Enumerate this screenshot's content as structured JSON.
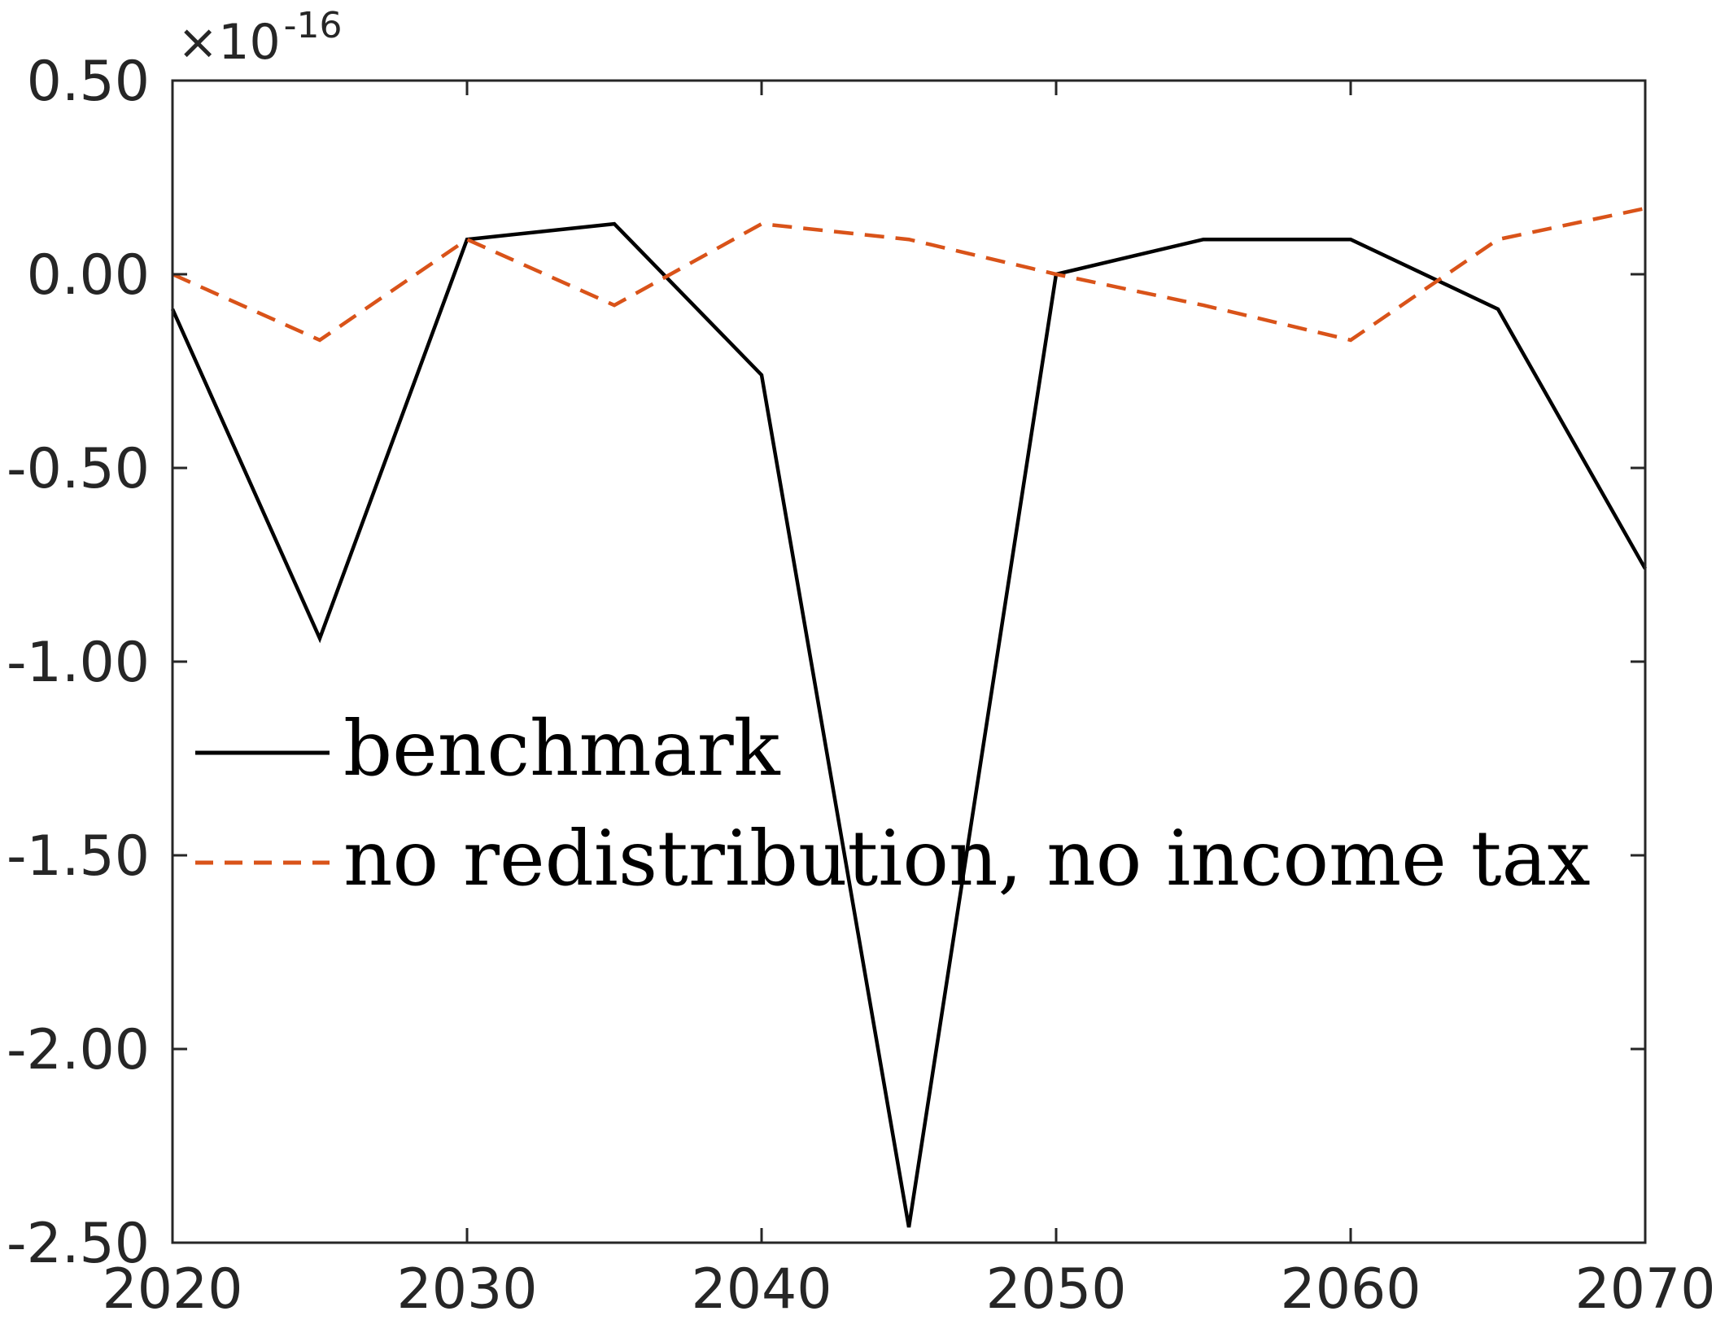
{
  "chart_data": {
    "type": "line",
    "title": "",
    "xlabel": "",
    "ylabel": "",
    "xlim": [
      2020,
      2070
    ],
    "ylim": [
      -2.5,
      0.5
    ],
    "x_ticks": [
      2020,
      2030,
      2040,
      2050,
      2060,
      2070
    ],
    "x_tick_labels": [
      "2020",
      "2030",
      "2040",
      "2050",
      "2060",
      "2070"
    ],
    "y_ticks": [
      0.5,
      0.0,
      -0.5,
      -1.0,
      -1.5,
      -2.0,
      -2.5
    ],
    "y_tick_labels": [
      "0.50",
      "0.00",
      "-0.50",
      "-1.00",
      "-1.50",
      "-2.00",
      "-2.50"
    ],
    "y_scale_multiplier": {
      "base": "×10",
      "exponent": "-16"
    },
    "x": [
      2020,
      2025,
      2030,
      2035,
      2040,
      2045,
      2050,
      2055,
      2060,
      2065,
      2070
    ],
    "series": [
      {
        "name": "benchmark",
        "color": "#000000",
        "style": "solid",
        "values": [
          -0.09,
          -0.94,
          0.09,
          0.13,
          -0.26,
          -2.46,
          0.0,
          0.09,
          0.09,
          -0.09,
          -0.76
        ]
      },
      {
        "name": "no redistribution, no income tax",
        "color": "#D95319",
        "style": "dashed",
        "values": [
          0.0,
          -0.17,
          0.09,
          -0.08,
          0.13,
          0.09,
          0.0,
          -0.08,
          -0.17,
          0.09,
          0.17
        ]
      }
    ],
    "legend": {
      "location": "center-left",
      "entries": [
        "benchmark",
        "no redistribution, no income tax"
      ]
    },
    "grid": false
  }
}
